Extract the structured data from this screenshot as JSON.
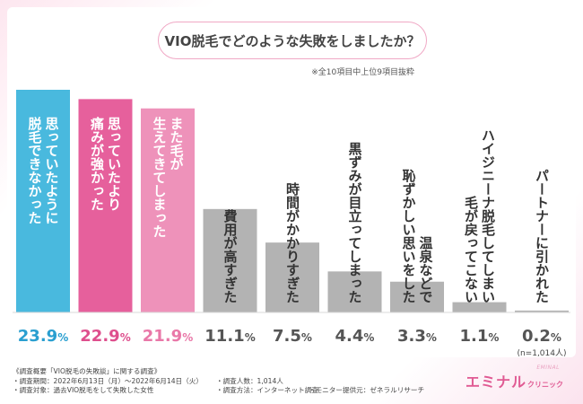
{
  "header": {
    "title": "VIO脱毛でどのような失敗をしましたか？",
    "note": "※全10項目中上位9項目抜粋"
  },
  "chart_data": {
    "type": "bar",
    "categories": [
      "思っていたように脱毛できなかった",
      "思っていたより痛みが強かった",
      "また毛が生えてきてしまった",
      "費用が高すぎた",
      "時間がかかりすぎた",
      "黒ずみが目立ってしまった",
      "温泉などで恥ずかしい思いをした",
      "ハイジニーナ脱毛してしまい毛が戻ってこない",
      "パートナーに引かれた"
    ],
    "label_lines": [
      [
        "思っていたように",
        "脱毛できなかった"
      ],
      [
        "思っていたより",
        "痛みが強かった"
      ],
      [
        "また毛が",
        "生えてきてしまった"
      ],
      [
        "費用が高すぎた"
      ],
      [
        "時間がかかりすぎた"
      ],
      [
        "黒ずみが目立ってしまった"
      ],
      [
        "温泉などで",
        "恥ずかしい思いをした"
      ],
      [
        "ハイジニーナ脱毛してしまい",
        "毛が戻ってこない"
      ],
      [
        "パートナーに引かれた"
      ]
    ],
    "values": [
      23.9,
      22.9,
      21.9,
      11.1,
      7.5,
      4.4,
      3.3,
      1.1,
      0.2
    ],
    "value_labels": [
      "23.9",
      "22.9",
      "21.9",
      "11.1",
      "7.5",
      "4.4",
      "3.3",
      "1.1",
      "0.2"
    ],
    "unit": "%",
    "sample_note": "(n=1,014人)",
    "ylim": [
      0,
      23.9
    ],
    "colors": [
      "#49b9de",
      "#e6609c",
      "#ee92ba",
      "#b3b3b3",
      "#b3b3b3",
      "#b3b3b3",
      "#b3b3b3",
      "#b3b3b3",
      "#b3b3b3"
    ],
    "value_colors": [
      "#2a9fd0",
      "#de4f8d",
      "#e978a8",
      "#555555",
      "#555555",
      "#555555",
      "#555555",
      "#555555",
      "#555555"
    ],
    "label_colors": [
      "#ffffff",
      "#ffffff",
      "#ffffff",
      "#333333",
      "#333333",
      "#333333",
      "#333333",
      "#333333",
      "#333333"
    ]
  },
  "footer": {
    "heading": "《調査概要「VIO脱毛の失敗談」に関する調査》",
    "period": "・調査期間：2022年6月13日（月）～2022年6月14日（火）",
    "target": "・調査対象：過去VIO脱毛をして失敗した女性",
    "count": "・調査人数：1,014人",
    "method": "・調査方法：インターネット調査",
    "provider": "・モニター提供元：ゼネラルリサーチ"
  },
  "logo": {
    "main": "エミナル",
    "sub": "クリニック",
    "tag": "EMINAL"
  }
}
